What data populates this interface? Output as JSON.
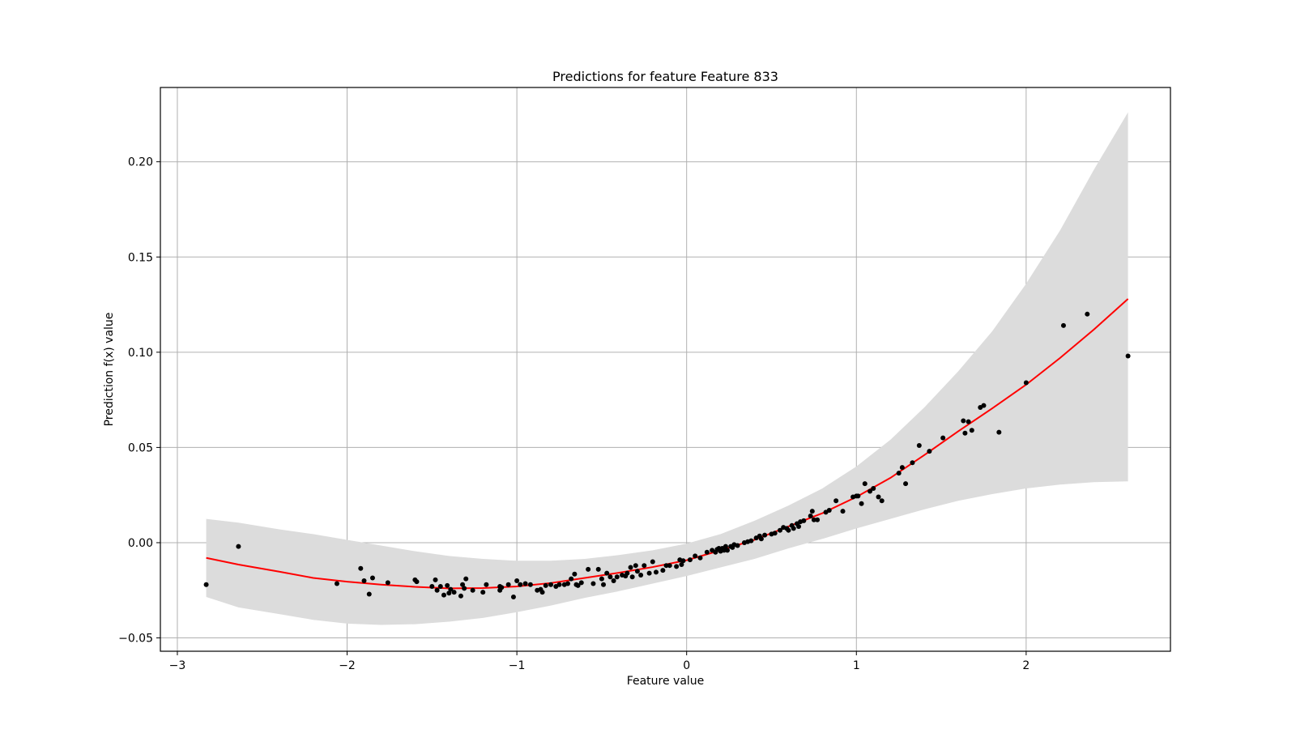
{
  "chart_data": {
    "type": "scatter",
    "title": "Predictions for feature Feature 833",
    "xlabel": "Feature value",
    "ylabel": "Prediction f(x) value",
    "xlim": [
      -3.1,
      2.85
    ],
    "ylim": [
      -0.057,
      0.239
    ],
    "x_ticks": [
      -3,
      -2,
      -1,
      0,
      1,
      2
    ],
    "x_tick_labels": [
      "−3",
      "−2",
      "−1",
      "0",
      "1",
      "2"
    ],
    "y_ticks": [
      -0.05,
      0.0,
      0.05,
      0.1,
      0.15,
      0.2
    ],
    "y_tick_labels": [
      "−0.05",
      "0.00",
      "0.05",
      "0.10",
      "0.15",
      "0.20"
    ],
    "grid": true,
    "colors": {
      "line": "#ff0000",
      "points": "#000000",
      "band": "#dcdcdc",
      "grid": "#b0b0b0"
    },
    "series": [
      {
        "kind": "line",
        "x": [
          -2.83,
          -2.64,
          -2.4,
          -2.2,
          -2.0,
          -1.8,
          -1.6,
          -1.4,
          -1.2,
          -1.0,
          -0.8,
          -0.6,
          -0.4,
          -0.2,
          0.0,
          0.2,
          0.4,
          0.6,
          0.8,
          1.0,
          1.2,
          1.4,
          1.6,
          1.8,
          2.0,
          2.2,
          2.4,
          2.6
        ],
        "y": [
          -0.008,
          -0.0115,
          -0.0152,
          -0.0185,
          -0.0205,
          -0.022,
          -0.0232,
          -0.024,
          -0.0238,
          -0.023,
          -0.0212,
          -0.0185,
          -0.0158,
          -0.0128,
          -0.0092,
          -0.004,
          0.0015,
          0.0085,
          0.0155,
          0.024,
          0.034,
          0.046,
          0.0585,
          0.0705,
          0.083,
          0.097,
          0.112,
          0.128
        ]
      },
      {
        "kind": "band",
        "x": [
          -2.83,
          -2.64,
          -2.4,
          -2.2,
          -2.0,
          -1.8,
          -1.6,
          -1.4,
          -1.2,
          -1.0,
          -0.8,
          -0.6,
          -0.4,
          -0.2,
          0.0,
          0.2,
          0.4,
          0.6,
          0.8,
          1.0,
          1.2,
          1.4,
          1.6,
          1.8,
          2.0,
          2.2,
          2.4,
          2.6
        ],
        "upper": [
          0.0125,
          0.0105,
          0.007,
          0.0045,
          0.0015,
          -0.0015,
          -0.0045,
          -0.007,
          -0.0085,
          -0.0095,
          -0.0095,
          -0.0085,
          -0.0065,
          -0.004,
          -0.0005,
          0.0045,
          0.0115,
          0.0195,
          0.0285,
          0.04,
          0.054,
          0.071,
          0.09,
          0.111,
          0.136,
          0.164,
          0.196,
          0.226
        ],
        "lower": [
          -0.0285,
          -0.034,
          -0.0375,
          -0.0405,
          -0.0425,
          -0.0432,
          -0.0428,
          -0.0415,
          -0.0395,
          -0.0365,
          -0.033,
          -0.029,
          -0.0255,
          -0.0215,
          -0.0175,
          -0.013,
          -0.0085,
          -0.003,
          0.002,
          0.0075,
          0.0125,
          0.0175,
          0.022,
          0.0255,
          0.0285,
          0.0305,
          0.0318,
          0.0322
        ]
      },
      {
        "kind": "points",
        "x": [
          -2.83,
          -2.64,
          -2.06,
          -1.92,
          -1.9,
          -1.87,
          -1.85,
          -1.76,
          -1.6,
          -1.59,
          -1.5,
          -1.48,
          -1.47,
          -1.45,
          -1.43,
          -1.41,
          -1.4,
          -1.39,
          -1.37,
          -1.33,
          -1.32,
          -1.31,
          -1.3,
          -1.26,
          -1.2,
          -1.18,
          -1.1,
          -1.1,
          -1.09,
          -1.05,
          -1.02,
          -1.0,
          -0.98,
          -0.95,
          -0.92,
          -0.88,
          -0.86,
          -0.85,
          -0.83,
          -0.8,
          -0.77,
          -0.75,
          -0.72,
          -0.7,
          -0.68,
          -0.66,
          -0.65,
          -0.64,
          -0.62,
          -0.58,
          -0.55,
          -0.52,
          -0.5,
          -0.49,
          -0.47,
          -0.45,
          -0.43,
          -0.41,
          -0.38,
          -0.36,
          -0.35,
          -0.33,
          -0.32,
          -0.3,
          -0.29,
          -0.27,
          -0.25,
          -0.22,
          -0.2,
          -0.18,
          -0.14,
          -0.12,
          -0.1,
          -0.06,
          -0.04,
          -0.03,
          -0.02,
          0.02,
          0.05,
          0.08,
          0.12,
          0.15,
          0.17,
          0.18,
          0.19,
          0.2,
          0.21,
          0.22,
          0.23,
          0.24,
          0.26,
          0.27,
          0.28,
          0.3,
          0.34,
          0.36,
          0.38,
          0.41,
          0.43,
          0.44,
          0.46,
          0.5,
          0.52,
          0.55,
          0.57,
          0.59,
          0.6,
          0.62,
          0.63,
          0.65,
          0.66,
          0.67,
          0.69,
          0.73,
          0.74,
          0.75,
          0.77,
          0.82,
          0.84,
          0.88,
          0.92,
          0.98,
          1.0,
          1.01,
          1.03,
          1.05,
          1.08,
          1.1,
          1.13,
          1.15,
          1.25,
          1.27,
          1.29,
          1.33,
          1.37,
          1.43,
          1.51,
          1.63,
          1.64,
          1.66,
          1.68,
          1.73,
          1.75,
          1.84,
          2.0,
          2.22,
          2.36,
          2.6
        ],
        "y": [
          -0.022,
          -0.002,
          -0.0215,
          -0.0135,
          -0.02,
          -0.027,
          -0.0185,
          -0.021,
          -0.0195,
          -0.0205,
          -0.023,
          -0.0195,
          -0.025,
          -0.023,
          -0.0275,
          -0.0225,
          -0.0265,
          -0.0245,
          -0.026,
          -0.028,
          -0.022,
          -0.024,
          -0.019,
          -0.025,
          -0.026,
          -0.022,
          -0.023,
          -0.025,
          -0.0235,
          -0.022,
          -0.0285,
          -0.02,
          -0.022,
          -0.0215,
          -0.022,
          -0.025,
          -0.0245,
          -0.026,
          -0.0225,
          -0.022,
          -0.023,
          -0.022,
          -0.022,
          -0.0215,
          -0.019,
          -0.0165,
          -0.022,
          -0.0225,
          -0.021,
          -0.014,
          -0.0215,
          -0.014,
          -0.019,
          -0.022,
          -0.016,
          -0.018,
          -0.02,
          -0.018,
          -0.017,
          -0.0175,
          -0.016,
          -0.013,
          -0.018,
          -0.012,
          -0.015,
          -0.017,
          -0.012,
          -0.016,
          -0.01,
          -0.0155,
          -0.0145,
          -0.012,
          -0.012,
          -0.0125,
          -0.009,
          -0.0115,
          -0.0095,
          -0.009,
          -0.007,
          -0.008,
          -0.005,
          -0.004,
          -0.005,
          -0.0035,
          -0.003,
          -0.0045,
          -0.003,
          -0.004,
          -0.002,
          -0.004,
          -0.002,
          -0.0025,
          -0.001,
          -0.0015,
          0.0,
          0.0005,
          0.001,
          0.0025,
          0.0035,
          0.002,
          0.004,
          0.0045,
          0.005,
          0.0065,
          0.008,
          0.0075,
          0.0065,
          0.009,
          0.0075,
          0.01,
          0.0085,
          0.011,
          0.0115,
          0.014,
          0.0165,
          0.012,
          0.012,
          0.016,
          0.017,
          0.022,
          0.0165,
          0.024,
          0.0245,
          0.0245,
          0.0205,
          0.031,
          0.027,
          0.0285,
          0.024,
          0.022,
          0.0365,
          0.0395,
          0.031,
          0.042,
          0.051,
          0.048,
          0.055,
          0.064,
          0.0575,
          0.0635,
          0.059,
          0.071,
          0.072,
          0.058,
          0.084,
          0.114,
          0.12,
          0.098
        ]
      }
    ]
  }
}
